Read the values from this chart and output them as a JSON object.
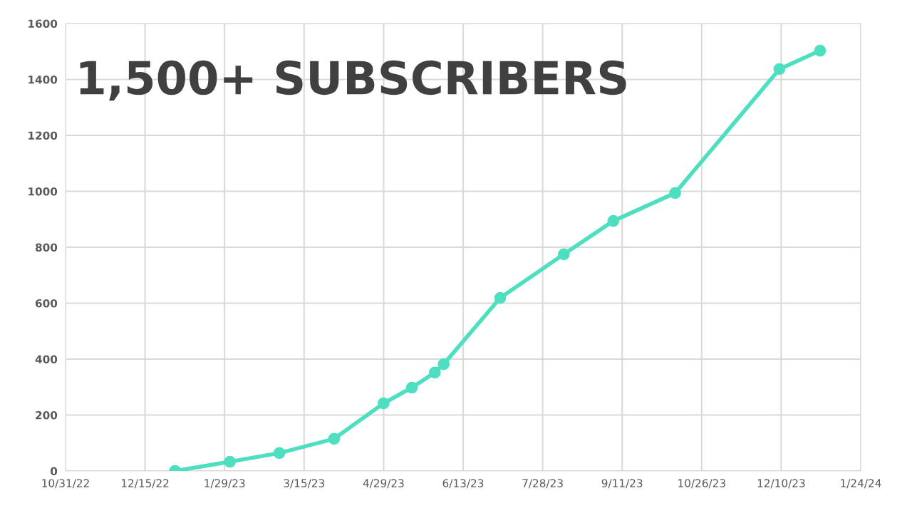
{
  "chart_data": {
    "type": "line",
    "title": "1,500+ SUBSCRIBERS",
    "x": [
      "2023-01-01",
      "2023-02-01",
      "2023-03-01",
      "2023-04-01",
      "2023-04-29",
      "2023-05-15",
      "2023-05-28",
      "2023-06-02",
      "2023-07-04",
      "2023-08-09",
      "2023-09-06",
      "2023-10-11",
      "2023-12-09",
      "2024-01-01"
    ],
    "series": [
      {
        "color": "#4ddfc0",
        "values": [
          0,
          33,
          64,
          115,
          242,
          298,
          352,
          382,
          619,
          775,
          894,
          994,
          1437,
          1503
        ]
      }
    ],
    "xlim": [
      "2022-10-31",
      "2024-01-24"
    ],
    "xticks": [
      {
        "value": "2022-10-31",
        "label": "10/31/22"
      },
      {
        "value": "2022-12-15",
        "label": "12/15/22"
      },
      {
        "value": "2023-01-29",
        "label": "1/29/23"
      },
      {
        "value": "2023-03-15",
        "label": "3/15/23"
      },
      {
        "value": "2023-04-29",
        "label": "4/29/23"
      },
      {
        "value": "2023-06-13",
        "label": "6/13/23"
      },
      {
        "value": "2023-07-28",
        "label": "7/28/23"
      },
      {
        "value": "2023-09-11",
        "label": "9/11/23"
      },
      {
        "value": "2023-10-26",
        "label": "10/26/23"
      },
      {
        "value": "2023-12-10",
        "label": "12/10/23"
      },
      {
        "value": "2024-01-24",
        "label": "1/24/24"
      }
    ],
    "ylim": [
      0,
      1600
    ],
    "yticks": [
      0,
      200,
      400,
      600,
      800,
      1000,
      1200,
      1400,
      1600
    ],
    "grid": true,
    "marker": "circle",
    "line_style": "solid"
  }
}
